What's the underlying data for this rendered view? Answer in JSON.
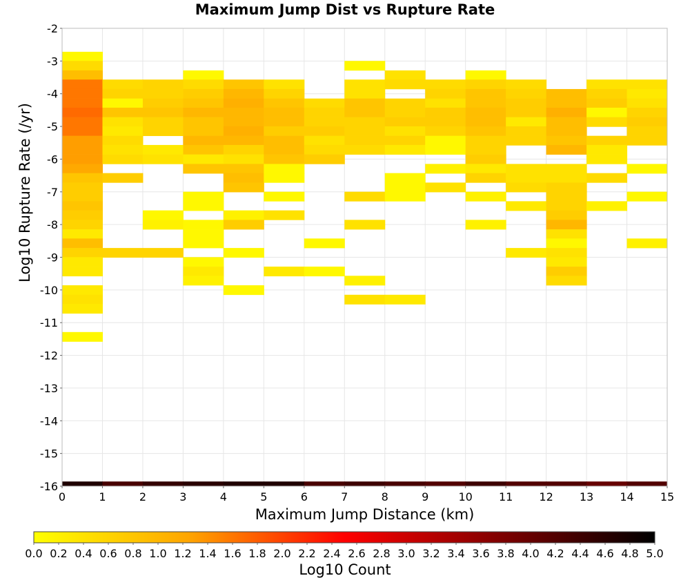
{
  "chart_data": {
    "type": "heatmap",
    "title": "Maximum Jump Dist vs Rupture Rate",
    "xlabel": "Maximum Jump Distance (km)",
    "ylabel": "Log10 Rupture Rate (/yr)",
    "xlim": [
      0,
      15
    ],
    "ylim": [
      -16,
      -2
    ],
    "x_ticks": [
      "0",
      "1",
      "2",
      "3",
      "4",
      "5",
      "6",
      "7",
      "8",
      "9",
      "10",
      "11",
      "12",
      "13",
      "14",
      "15"
    ],
    "y_ticks": [
      "-16",
      "-15",
      "-14",
      "-13",
      "-12",
      "-11",
      "-10",
      "-9",
      "-8",
      "-7",
      "-6",
      "-5",
      "-4",
      "-3",
      "-2"
    ],
    "x_bin_width": 1,
    "y_bin_height": 0.286,
    "grid": true,
    "colorbar": {
      "label": "Log10 Count",
      "range": [
        0,
        5
      ],
      "tick_labels": [
        "0.0",
        "0.2",
        "0.4",
        "0.6",
        "0.8",
        "1.0",
        "1.2",
        "1.4",
        "1.6",
        "1.8",
        "2.0",
        "2.2",
        "2.4",
        "2.6",
        "2.8",
        "3.0",
        "3.2",
        "3.4",
        "3.6",
        "3.8",
        "4.0",
        "4.2",
        "4.4",
        "4.6",
        "4.8",
        "5.0"
      ],
      "colors": [
        "#ffff00",
        "#ffa500",
        "#ff0000",
        "#800000",
        "#000000"
      ]
    },
    "bottom_row": {
      "y": -16,
      "values": [
        4.7,
        4.3,
        4.5,
        4.6,
        4.7,
        4.7,
        4.3,
        4.4,
        4.3,
        4.2,
        4.4,
        4.2,
        4.2,
        4.0,
        4.2
      ]
    },
    "columns": [
      {
        "x": 0,
        "cells": [
          [
            -2.86,
            0.1
          ],
          [
            -3.14,
            0.5
          ],
          [
            -3.43,
            0.9
          ],
          [
            -3.71,
            1.6
          ],
          [
            -4.0,
            1.6
          ],
          [
            -4.29,
            1.6
          ],
          [
            -4.57,
            1.7
          ],
          [
            -4.86,
            1.6
          ],
          [
            -5.14,
            1.6
          ],
          [
            -5.43,
            1.3
          ],
          [
            -5.71,
            1.3
          ],
          [
            -6.0,
            1.3
          ],
          [
            -6.29,
            1.2
          ],
          [
            -6.57,
            0.8
          ],
          [
            -6.86,
            0.7
          ],
          [
            -7.14,
            0.7
          ],
          [
            -7.43,
            0.8
          ],
          [
            -7.71,
            0.7
          ],
          [
            -8.0,
            0.6
          ],
          [
            -8.29,
            0.3
          ],
          [
            -8.57,
            0.9
          ],
          [
            -8.86,
            0.6
          ],
          [
            -9.14,
            0.3
          ],
          [
            -9.43,
            0.3
          ],
          [
            -10.0,
            0.3
          ],
          [
            -10.29,
            0.4
          ],
          [
            -10.57,
            0.3
          ],
          [
            -11.43,
            0.1
          ]
        ]
      },
      {
        "x": 1,
        "cells": [
          [
            -3.71,
            0.5
          ],
          [
            -4.0,
            0.6
          ],
          [
            -4.29,
            0.1
          ],
          [
            -4.57,
            0.8
          ],
          [
            -4.86,
            0.4
          ],
          [
            -5.14,
            0.3
          ],
          [
            -5.43,
            0.5
          ],
          [
            -5.71,
            0.4
          ],
          [
            -6.0,
            0.5
          ],
          [
            -6.57,
            0.7
          ],
          [
            -8.86,
            0.6
          ]
        ]
      },
      {
        "x": 2,
        "cells": [
          [
            -3.71,
            0.6
          ],
          [
            -4.0,
            0.6
          ],
          [
            -4.29,
            0.7
          ],
          [
            -4.57,
            0.8
          ],
          [
            -4.86,
            0.6
          ],
          [
            -5.14,
            0.6
          ],
          [
            -5.71,
            0.3
          ],
          [
            -6.0,
            0.4
          ],
          [
            -7.71,
            0.1
          ],
          [
            -8.0,
            0.2
          ],
          [
            -8.86,
            0.6
          ]
        ]
      },
      {
        "x": 3,
        "cells": [
          [
            -3.43,
            0.1
          ],
          [
            -3.71,
            0.5
          ],
          [
            -4.0,
            0.7
          ],
          [
            -4.29,
            0.8
          ],
          [
            -4.57,
            1.0
          ],
          [
            -4.86,
            0.8
          ],
          [
            -5.14,
            0.8
          ],
          [
            -5.43,
            1.0
          ],
          [
            -5.71,
            0.8
          ],
          [
            -6.0,
            0.3
          ],
          [
            -6.29,
            0.8
          ],
          [
            -7.14,
            0.1
          ],
          [
            -7.43,
            0.1
          ],
          [
            -8.0,
            0.1
          ],
          [
            -8.29,
            0.1
          ],
          [
            -8.57,
            0.1
          ],
          [
            -9.14,
            0.1
          ],
          [
            -9.43,
            0.3
          ],
          [
            -9.71,
            0.2
          ]
        ]
      },
      {
        "x": 4,
        "cells": [
          [
            -3.71,
            0.8
          ],
          [
            -4.0,
            1.0
          ],
          [
            -4.29,
            1.1
          ],
          [
            -4.57,
            1.0
          ],
          [
            -4.86,
            1.0
          ],
          [
            -5.14,
            1.1
          ],
          [
            -5.43,
            1.0
          ],
          [
            -5.71,
            0.6
          ],
          [
            -6.0,
            0.4
          ],
          [
            -6.29,
            0.8
          ],
          [
            -6.57,
            0.9
          ],
          [
            -6.86,
            0.8
          ],
          [
            -7.71,
            0.2
          ],
          [
            -8.0,
            0.7
          ],
          [
            -8.86,
            0.1
          ],
          [
            -10.0,
            0.1
          ]
        ]
      },
      {
        "x": 5,
        "cells": [
          [
            -3.71,
            0.4
          ],
          [
            -4.0,
            0.6
          ],
          [
            -4.29,
            0.8
          ],
          [
            -4.57,
            0.9
          ],
          [
            -4.86,
            0.9
          ],
          [
            -5.14,
            0.7
          ],
          [
            -5.43,
            0.9
          ],
          [
            -5.71,
            0.9
          ],
          [
            -6.0,
            0.8
          ],
          [
            -6.29,
            0.1
          ],
          [
            -6.57,
            0.1
          ],
          [
            -7.14,
            0.1
          ],
          [
            -7.71,
            0.4
          ],
          [
            -9.43,
            0.3
          ]
        ]
      },
      {
        "x": 6,
        "cells": [
          [
            -4.29,
            0.5
          ],
          [
            -4.57,
            0.6
          ],
          [
            -4.86,
            0.6
          ],
          [
            -5.14,
            0.7
          ],
          [
            -5.43,
            0.4
          ],
          [
            -5.71,
            0.5
          ],
          [
            -6.0,
            0.7
          ],
          [
            -8.57,
            0.1
          ],
          [
            -9.43,
            0.1
          ]
        ]
      },
      {
        "x": 7,
        "cells": [
          [
            -3.14,
            0.1
          ],
          [
            -3.71,
            0.4
          ],
          [
            -4.0,
            0.4
          ],
          [
            -4.29,
            0.8
          ],
          [
            -4.57,
            0.8
          ],
          [
            -4.86,
            0.6
          ],
          [
            -5.14,
            0.6
          ],
          [
            -5.43,
            0.6
          ],
          [
            -5.71,
            0.5
          ],
          [
            -7.14,
            0.5
          ],
          [
            -8.0,
            0.4
          ],
          [
            -9.71,
            0.2
          ],
          [
            -10.29,
            0.4
          ]
        ]
      },
      {
        "x": 8,
        "cells": [
          [
            -3.43,
            0.4
          ],
          [
            -3.71,
            0.5
          ],
          [
            -4.29,
            0.6
          ],
          [
            -4.57,
            0.6
          ],
          [
            -4.86,
            0.7
          ],
          [
            -5.14,
            0.4
          ],
          [
            -5.43,
            0.6
          ],
          [
            -5.71,
            0.3
          ],
          [
            -6.57,
            0.1
          ],
          [
            -6.86,
            0.1
          ],
          [
            -7.14,
            0.1
          ],
          [
            -10.29,
            0.3
          ]
        ]
      },
      {
        "x": 9,
        "cells": [
          [
            -3.71,
            0.5
          ],
          [
            -4.0,
            0.6
          ],
          [
            -4.29,
            0.4
          ],
          [
            -4.57,
            0.7
          ],
          [
            -4.86,
            0.7
          ],
          [
            -5.14,
            0.6
          ],
          [
            -5.43,
            0.1
          ],
          [
            -5.71,
            0.1
          ],
          [
            -6.29,
            0.2
          ],
          [
            -6.86,
            0.4
          ]
        ]
      },
      {
        "x": 10,
        "cells": [
          [
            -3.43,
            0.1
          ],
          [
            -3.71,
            0.6
          ],
          [
            -4.0,
            0.8
          ],
          [
            -4.29,
            0.8
          ],
          [
            -4.57,
            0.9
          ],
          [
            -4.86,
            0.9
          ],
          [
            -5.14,
            0.8
          ],
          [
            -5.43,
            0.6
          ],
          [
            -5.71,
            0.6
          ],
          [
            -6.0,
            0.7
          ],
          [
            -6.29,
            0.3
          ],
          [
            -6.57,
            0.6
          ],
          [
            -7.14,
            0.2
          ],
          [
            -8.0,
            0.2
          ]
        ]
      },
      {
        "x": 11,
        "cells": [
          [
            -3.71,
            0.5
          ],
          [
            -4.0,
            0.6
          ],
          [
            -4.29,
            0.7
          ],
          [
            -4.57,
            0.7
          ],
          [
            -4.86,
            0.3
          ],
          [
            -5.14,
            0.6
          ],
          [
            -5.43,
            0.6
          ],
          [
            -6.29,
            0.4
          ],
          [
            -6.57,
            0.4
          ],
          [
            -6.86,
            0.5
          ],
          [
            -7.43,
            0.3
          ],
          [
            -8.86,
            0.3
          ]
        ]
      },
      {
        "x": 12,
        "cells": [
          [
            -4.0,
            0.9
          ],
          [
            -4.29,
            0.9
          ],
          [
            -4.57,
            1.1
          ],
          [
            -4.86,
            0.9
          ],
          [
            -5.14,
            0.9
          ],
          [
            -5.43,
            0.8
          ],
          [
            -5.71,
            1.0
          ],
          [
            -6.29,
            0.4
          ],
          [
            -6.57,
            0.4
          ],
          [
            -6.86,
            0.6
          ],
          [
            -7.14,
            0.6
          ],
          [
            -7.43,
            0.6
          ],
          [
            -7.71,
            0.7
          ],
          [
            -8.0,
            1.0
          ],
          [
            -8.29,
            0.4
          ],
          [
            -8.57,
            0.1
          ],
          [
            -8.86,
            0.4
          ],
          [
            -9.14,
            0.3
          ],
          [
            -9.43,
            0.7
          ],
          [
            -9.71,
            0.5
          ]
        ]
      },
      {
        "x": 13,
        "cells": [
          [
            -3.71,
            0.4
          ],
          [
            -4.0,
            0.6
          ],
          [
            -4.29,
            0.7
          ],
          [
            -4.57,
            0.1
          ],
          [
            -4.86,
            0.5
          ],
          [
            -5.43,
            0.6
          ],
          [
            -5.71,
            0.3
          ],
          [
            -6.0,
            0.3
          ],
          [
            -6.57,
            0.5
          ],
          [
            -7.43,
            0.2
          ]
        ]
      },
      {
        "x": 14,
        "cells": [
          [
            -3.71,
            0.4
          ],
          [
            -4.0,
            0.3
          ],
          [
            -4.29,
            0.4
          ],
          [
            -4.57,
            0.6
          ],
          [
            -4.86,
            0.7
          ],
          [
            -5.14,
            0.6
          ],
          [
            -5.43,
            0.6
          ],
          [
            -6.29,
            0.1
          ],
          [
            -7.14,
            0.1
          ],
          [
            -8.57,
            0.2
          ]
        ]
      }
    ]
  }
}
